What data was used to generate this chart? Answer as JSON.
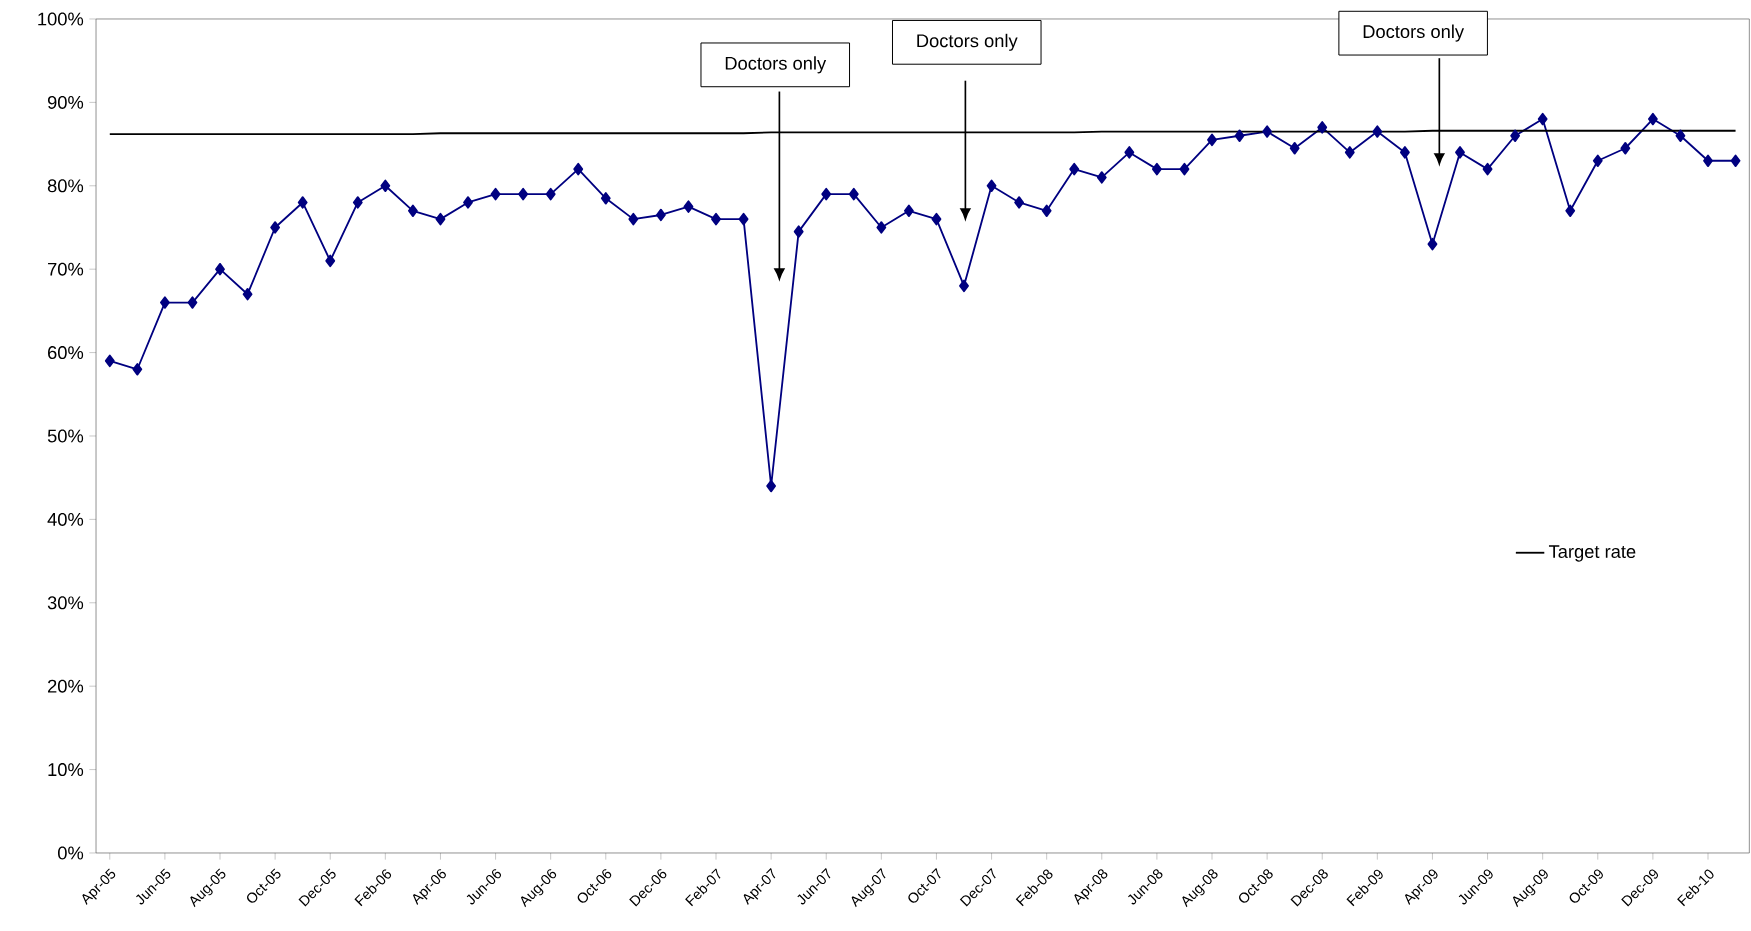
{
  "chart_data": {
    "type": "line",
    "categories": [
      "Apr-05",
      null,
      "Jun-05",
      null,
      "Aug-05",
      null,
      "Oct-05",
      null,
      "Dec-05",
      null,
      "Feb-06",
      null,
      "Apr-06",
      null,
      "Jun-06",
      null,
      "Aug-06",
      null,
      "Oct-06",
      null,
      "Dec-06",
      null,
      "Feb-07",
      null,
      "Apr-07",
      null,
      "Jun-07",
      null,
      "Aug-07",
      null,
      "Oct-07",
      null,
      "Dec-07",
      null,
      "Feb-08",
      null,
      "Apr-08",
      null,
      "Jun-08",
      null,
      "Aug-08",
      null,
      "Oct-08",
      null,
      "Dec-08",
      null,
      "Feb-09",
      null,
      "Apr-09",
      null,
      "Jun-09",
      null,
      "Aug-09",
      null,
      "Oct-09",
      null,
      "Dec-09",
      null,
      "Feb-10",
      null
    ],
    "series": [
      {
        "color": "#000080",
        "marker": "diamond",
        "values": [
          59,
          58,
          66,
          66,
          70,
          67,
          75,
          78,
          71,
          78,
          80,
          77,
          76,
          78,
          79,
          79,
          79,
          82,
          78.5,
          76,
          76.5,
          77.5,
          76,
          76,
          44,
          74.5,
          79,
          79,
          75,
          77,
          76,
          68,
          80,
          78,
          77,
          82,
          81,
          84,
          82,
          82,
          85.5,
          86,
          86.5,
          84.5,
          87,
          84,
          86.5,
          84,
          73,
          84,
          82,
          86,
          88,
          77,
          83,
          84.5,
          88,
          86,
          83,
          83
        ]
      },
      {
        "name": "Target rate",
        "color": "#000000",
        "marker": "none",
        "values": [
          86.2,
          86.2,
          86.2,
          86.2,
          86.2,
          86.2,
          86.2,
          86.2,
          86.2,
          86.2,
          86.2,
          86.2,
          86.3,
          86.3,
          86.3,
          86.3,
          86.3,
          86.3,
          86.3,
          86.3,
          86.3,
          86.3,
          86.3,
          86.3,
          86.4,
          86.4,
          86.4,
          86.4,
          86.4,
          86.4,
          86.4,
          86.4,
          86.4,
          86.4,
          86.4,
          86.4,
          86.5,
          86.5,
          86.5,
          86.5,
          86.5,
          86.5,
          86.5,
          86.5,
          86.5,
          86.5,
          86.5,
          86.5,
          86.6,
          86.6,
          86.6,
          86.6,
          86.6,
          86.6,
          86.6,
          86.6,
          86.6,
          86.6,
          86.6,
          86.6
        ]
      }
    ],
    "ylim": [
      0,
      100
    ],
    "yticks": [
      {
        "value": 0,
        "label": "0%"
      },
      {
        "value": 10,
        "label": "10%"
      },
      {
        "value": 20,
        "label": "20%"
      },
      {
        "value": 30,
        "label": "30%"
      },
      {
        "value": 40,
        "label": "40%"
      },
      {
        "value": 50,
        "label": "50%"
      },
      {
        "value": 60,
        "label": "60%"
      },
      {
        "value": 70,
        "label": "70%"
      },
      {
        "value": 80,
        "label": "80%"
      },
      {
        "value": 90,
        "label": "90%"
      },
      {
        "value": 100,
        "label": "100%"
      }
    ],
    "annotations": [
      "Doctors only",
      "Doctors only",
      "Doctors only"
    ],
    "legend": "right",
    "grid": false
  }
}
